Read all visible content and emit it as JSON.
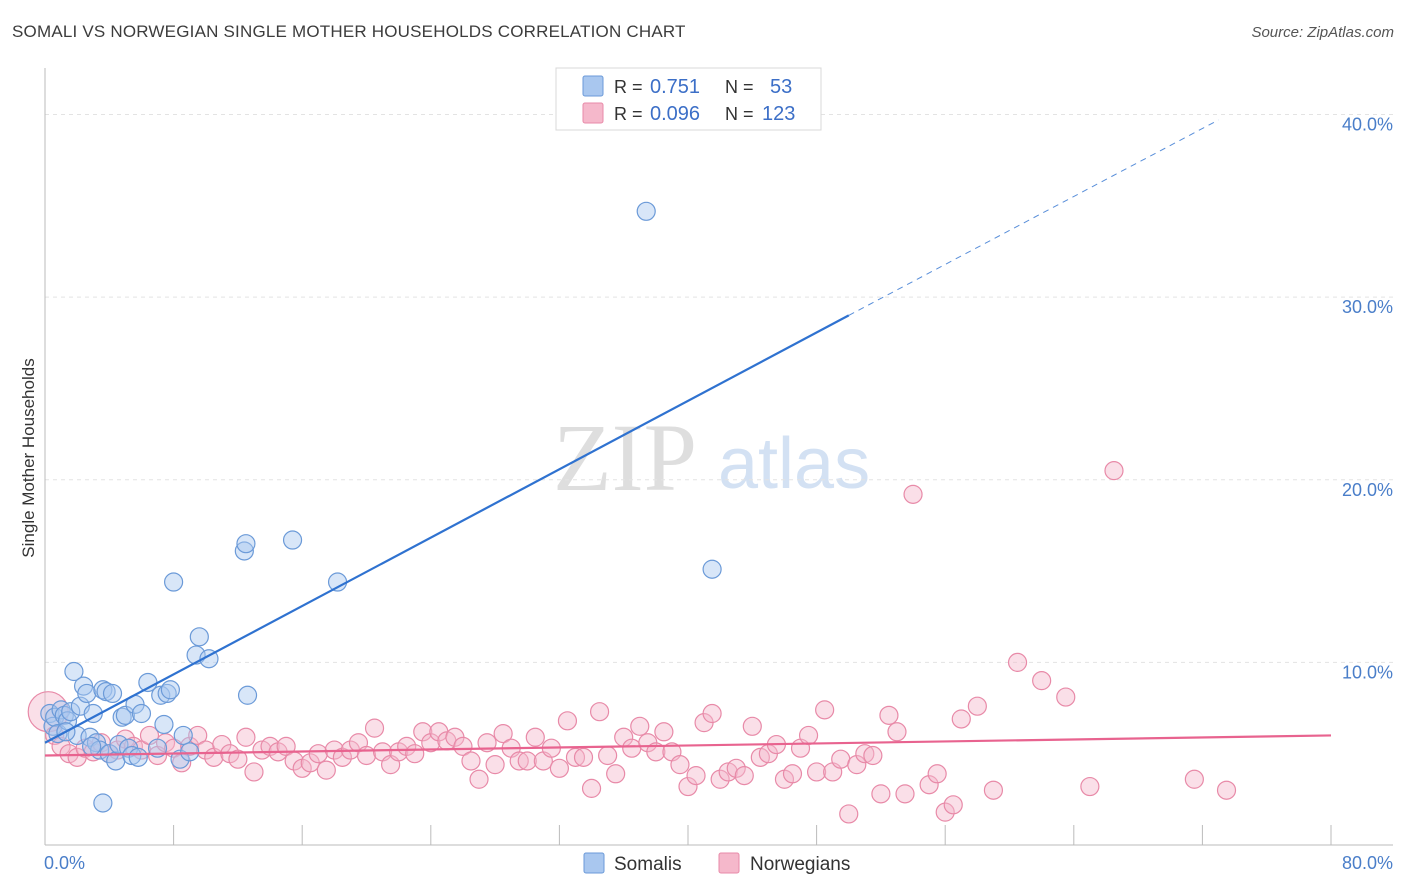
{
  "header": {
    "title": "SOMALI VS NORWEGIAN SINGLE MOTHER HOUSEHOLDS CORRELATION CHART",
    "source": "Source: ZipAtlas.com"
  },
  "watermark": {
    "zip": "ZIP",
    "atlas": "atlas"
  },
  "legend": {
    "r_label": "R =",
    "n_label": "N =",
    "rows": [
      {
        "r": "0.751",
        "n": "53",
        "color": "#a9c7ef",
        "stroke": "#6b9ad8"
      },
      {
        "r": "0.096",
        "n": "123",
        "color": "#f5b8cb",
        "stroke": "#e88aa8"
      }
    ]
  },
  "colors": {
    "somali_fill": "rgba(169,199,239,0.45)",
    "somali_stroke": "#6b9ad8",
    "somali_line": "#2f72d0",
    "norw_fill": "rgba(245,184,203,0.45)",
    "norw_stroke": "#e88aa8",
    "norw_line": "#e8638f",
    "grid": "#e3e3e3"
  },
  "chart_data": {
    "type": "scatter",
    "title": "SOMALI VS NORWEGIAN SINGLE MOTHER HOUSEHOLDS CORRELATION CHART",
    "ylabel": "Single Mother Households",
    "xlabel": "",
    "xlim": [
      0,
      80
    ],
    "ylim": [
      0,
      42
    ],
    "x_tick_labels": [
      "0.0%",
      "80.0%"
    ],
    "y_ticks": [
      10,
      20,
      30,
      40
    ],
    "y_tick_labels": [
      "10.0%",
      "20.0%",
      "30.0%",
      "40.0%"
    ],
    "series": [
      {
        "name": "Somalis",
        "r": 0.751,
        "n": 53,
        "trend": {
          "x0": 0,
          "y0": 5.6,
          "x1": 50,
          "y1": 29.0,
          "dash_to_x": 73,
          "dash_to_y": 39.7
        },
        "points": [
          [
            0.3,
            7.2
          ],
          [
            0.5,
            6.5
          ],
          [
            0.6,
            7.0
          ],
          [
            0.8,
            6.1
          ],
          [
            1.0,
            7.4
          ],
          [
            1.2,
            7.1
          ],
          [
            1.4,
            6.8
          ],
          [
            1.6,
            7.3
          ],
          [
            1.8,
            9.5
          ],
          [
            2.0,
            6.0
          ],
          [
            2.2,
            7.6
          ],
          [
            2.4,
            8.7
          ],
          [
            2.6,
            8.3
          ],
          [
            2.8,
            5.9
          ],
          [
            3.0,
            7.2
          ],
          [
            3.2,
            5.6
          ],
          [
            3.4,
            5.2
          ],
          [
            3.6,
            8.5
          ],
          [
            3.8,
            8.4
          ],
          [
            4.0,
            5.0
          ],
          [
            4.2,
            8.3
          ],
          [
            4.4,
            4.6
          ],
          [
            4.6,
            5.5
          ],
          [
            4.8,
            7.0
          ],
          [
            5.0,
            7.1
          ],
          [
            5.2,
            5.3
          ],
          [
            5.4,
            4.9
          ],
          [
            5.6,
            7.7
          ],
          [
            5.8,
            4.8
          ],
          [
            6.0,
            7.2
          ],
          [
            6.4,
            8.9
          ],
          [
            7.0,
            5.3
          ],
          [
            7.2,
            8.2
          ],
          [
            7.4,
            6.6
          ],
          [
            7.6,
            8.3
          ],
          [
            7.8,
            8.5
          ],
          [
            8.0,
            14.4
          ],
          [
            8.4,
            4.7
          ],
          [
            8.6,
            6.0
          ],
          [
            9.0,
            5.1
          ],
          [
            9.4,
            10.4
          ],
          [
            9.6,
            11.4
          ],
          [
            10.2,
            10.2
          ],
          [
            12.4,
            16.1
          ],
          [
            12.5,
            16.5
          ],
          [
            12.6,
            8.2
          ],
          [
            15.4,
            16.7
          ],
          [
            18.2,
            14.4
          ],
          [
            37.4,
            34.7
          ],
          [
            41.5,
            15.1
          ],
          [
            3.6,
            2.3
          ],
          [
            1.3,
            6.2
          ],
          [
            2.9,
            5.4
          ]
        ]
      },
      {
        "name": "Norwegians",
        "r": 0.096,
        "n": 123,
        "trend": {
          "x0": 0,
          "y0": 4.9,
          "x1": 80,
          "y1": 6.0
        },
        "points": [
          [
            0.2,
            7.3
          ],
          [
            0.6,
            6.0
          ],
          [
            1.0,
            5.4
          ],
          [
            1.5,
            5.0
          ],
          [
            2.0,
            4.8
          ],
          [
            2.5,
            5.3
          ],
          [
            3.0,
            5.1
          ],
          [
            3.5,
            5.6
          ],
          [
            4.0,
            5.0
          ],
          [
            4.5,
            5.2
          ],
          [
            5.0,
            5.8
          ],
          [
            5.5,
            5.4
          ],
          [
            6.0,
            5.2
          ],
          [
            6.5,
            6.0
          ],
          [
            7.0,
            4.9
          ],
          [
            7.5,
            5.6
          ],
          [
            8.0,
            5.3
          ],
          [
            8.5,
            4.5
          ],
          [
            9.0,
            5.4
          ],
          [
            9.5,
            6.0
          ],
          [
            10.0,
            5.2
          ],
          [
            10.5,
            4.8
          ],
          [
            11.0,
            5.5
          ],
          [
            11.5,
            5.0
          ],
          [
            12.0,
            4.7
          ],
          [
            12.5,
            5.9
          ],
          [
            13.0,
            4.0
          ],
          [
            13.5,
            5.2
          ],
          [
            14.0,
            5.4
          ],
          [
            14.5,
            5.1
          ],
          [
            15.0,
            5.4
          ],
          [
            15.5,
            4.6
          ],
          [
            16.0,
            4.2
          ],
          [
            16.5,
            4.5
          ],
          [
            17.0,
            5.0
          ],
          [
            17.5,
            4.1
          ],
          [
            18.0,
            5.2
          ],
          [
            18.5,
            4.8
          ],
          [
            19.0,
            5.2
          ],
          [
            19.5,
            5.6
          ],
          [
            20.0,
            4.9
          ],
          [
            20.5,
            6.4
          ],
          [
            21.0,
            5.1
          ],
          [
            21.5,
            4.4
          ],
          [
            22.0,
            5.1
          ],
          [
            22.5,
            5.4
          ],
          [
            23.0,
            5.0
          ],
          [
            23.5,
            6.2
          ],
          [
            24.0,
            5.6
          ],
          [
            24.5,
            6.2
          ],
          [
            25.0,
            5.7
          ],
          [
            25.5,
            5.9
          ],
          [
            26.0,
            5.4
          ],
          [
            26.5,
            4.6
          ],
          [
            27.0,
            3.6
          ],
          [
            27.5,
            5.6
          ],
          [
            28.0,
            4.4
          ],
          [
            28.5,
            6.1
          ],
          [
            29.0,
            5.3
          ],
          [
            29.5,
            4.6
          ],
          [
            30.0,
            4.6
          ],
          [
            30.5,
            5.9
          ],
          [
            31.0,
            4.6
          ],
          [
            31.5,
            5.3
          ],
          [
            32.0,
            4.2
          ],
          [
            32.5,
            6.8
          ],
          [
            33.0,
            4.8
          ],
          [
            33.5,
            4.8
          ],
          [
            34.0,
            3.1
          ],
          [
            34.5,
            7.3
          ],
          [
            35.0,
            4.9
          ],
          [
            35.5,
            3.9
          ],
          [
            36.0,
            5.9
          ],
          [
            36.5,
            5.3
          ],
          [
            37.0,
            6.5
          ],
          [
            37.5,
            5.6
          ],
          [
            38.0,
            5.1
          ],
          [
            38.5,
            6.2
          ],
          [
            39.0,
            5.1
          ],
          [
            39.5,
            4.4
          ],
          [
            40.0,
            3.2
          ],
          [
            40.5,
            3.8
          ],
          [
            41.0,
            6.7
          ],
          [
            41.5,
            7.2
          ],
          [
            42.0,
            3.6
          ],
          [
            42.5,
            4.0
          ],
          [
            43.0,
            4.2
          ],
          [
            43.5,
            3.8
          ],
          [
            44.0,
            6.5
          ],
          [
            44.5,
            4.8
          ],
          [
            45.0,
            5.0
          ],
          [
            45.5,
            5.5
          ],
          [
            46.0,
            3.6
          ],
          [
            46.5,
            3.9
          ],
          [
            47.0,
            5.3
          ],
          [
            47.5,
            6.0
          ],
          [
            48.0,
            4.0
          ],
          [
            48.5,
            7.4
          ],
          [
            49.0,
            4.0
          ],
          [
            49.5,
            4.7
          ],
          [
            50.0,
            1.7
          ],
          [
            50.5,
            4.4
          ],
          [
            51.0,
            5.0
          ],
          [
            51.5,
            4.9
          ],
          [
            52.0,
            2.8
          ],
          [
            52.5,
            7.1
          ],
          [
            53.0,
            6.2
          ],
          [
            53.5,
            2.8
          ],
          [
            54.0,
            19.2
          ],
          [
            55.0,
            3.3
          ],
          [
            55.5,
            3.9
          ],
          [
            56.0,
            1.8
          ],
          [
            56.5,
            2.2
          ],
          [
            57.0,
            6.9
          ],
          [
            58.0,
            7.6
          ],
          [
            59.0,
            3.0
          ],
          [
            60.5,
            10.0
          ],
          [
            62.0,
            9.0
          ],
          [
            63.5,
            8.1
          ],
          [
            65.0,
            3.2
          ],
          [
            66.5,
            20.5
          ],
          [
            71.5,
            3.6
          ],
          [
            73.5,
            3.0
          ]
        ]
      }
    ]
  }
}
